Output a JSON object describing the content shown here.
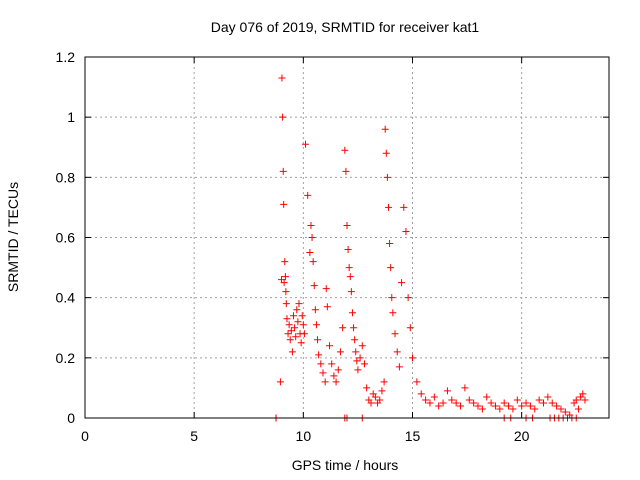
{
  "chart_data": {
    "type": "scatter",
    "title": "Day 076 of 2019, SRMTID for receiver kat1",
    "xlabel": "GPS time / hours",
    "ylabel": "SRMTID / TECUs",
    "xlim": [
      0,
      24
    ],
    "ylim": [
      0,
      1.2
    ],
    "x_ticks": [
      0,
      5,
      10,
      15,
      20
    ],
    "y_ticks": [
      0,
      0.2,
      0.4,
      0.6,
      0.8,
      1,
      1.2
    ],
    "x_tick_labels": [
      "0",
      "5",
      "10",
      "15",
      "20"
    ],
    "y_tick_labels": [
      "0",
      "0.2",
      "0.4",
      "0.6",
      "0.8",
      "1",
      "1.2"
    ],
    "grid": true,
    "marker": "plus",
    "color": "#ff0000",
    "series": [
      {
        "name": "SRMTID",
        "x": [
          8.75,
          8.95,
          9.0,
          9.02,
          9.05,
          9.08,
          9.1,
          9.12,
          9.15,
          9.18,
          9.2,
          9.22,
          9.25,
          9.3,
          9.35,
          9.4,
          9.45,
          9.5,
          9.55,
          9.6,
          9.65,
          9.7,
          9.75,
          9.8,
          9.85,
          9.9,
          9.95,
          10.0,
          10.05,
          10.1,
          10.2,
          10.3,
          10.35,
          10.4,
          10.45,
          10.5,
          10.55,
          10.6,
          10.65,
          10.7,
          10.8,
          10.9,
          11.0,
          11.05,
          11.1,
          11.2,
          11.3,
          11.4,
          11.5,
          11.6,
          11.7,
          11.8,
          11.9,
          11.95,
          12.0,
          12.05,
          12.1,
          12.15,
          12.2,
          12.25,
          12.3,
          12.35,
          12.4,
          12.45,
          12.5,
          12.6,
          12.7,
          12.8,
          12.9,
          13.0,
          13.1,
          13.2,
          13.3,
          13.4,
          13.5,
          13.6,
          13.7,
          13.75,
          13.8,
          13.85,
          13.9,
          13.95,
          14.0,
          14.05,
          14.1,
          14.2,
          14.3,
          14.4,
          14.5,
          14.6,
          14.7,
          14.8,
          14.9,
          15.0,
          15.2,
          15.4,
          15.6,
          15.8,
          16.0,
          16.2,
          16.4,
          16.6,
          16.8,
          17.0,
          17.2,
          17.4,
          17.6,
          17.8,
          18.0,
          18.2,
          18.4,
          18.6,
          18.8,
          19.0,
          19.2,
          19.4,
          19.6,
          19.8,
          20.0,
          20.2,
          20.4,
          20.6,
          20.8,
          21.0,
          21.2,
          21.4,
          21.6,
          21.8,
          22.0,
          22.2,
          22.4,
          22.5,
          22.6,
          22.7,
          22.8,
          22.9
        ],
        "y": [
          0.0,
          0.12,
          0.46,
          1.13,
          1.0,
          0.82,
          0.71,
          0.45,
          0.52,
          0.47,
          0.42,
          0.38,
          0.33,
          0.28,
          0.31,
          0.26,
          0.29,
          0.22,
          0.34,
          0.3,
          0.27,
          0.36,
          0.32,
          0.38,
          0.28,
          0.25,
          0.34,
          0.31,
          0.28,
          0.91,
          0.74,
          0.55,
          0.64,
          0.6,
          0.52,
          0.44,
          0.36,
          0.31,
          0.26,
          0.21,
          0.18,
          0.15,
          0.12,
          0.43,
          0.37,
          0.24,
          0.18,
          0.14,
          0.12,
          0.16,
          0.22,
          0.3,
          0.89,
          0.82,
          0.64,
          0.56,
          0.5,
          0.47,
          0.42,
          0.35,
          0.3,
          0.26,
          0.22,
          0.19,
          0.16,
          0.2,
          0.24,
          0.18,
          0.1,
          0.06,
          0.05,
          0.08,
          0.07,
          0.05,
          0.06,
          0.09,
          0.12,
          0.96,
          0.88,
          0.8,
          0.7,
          0.58,
          0.5,
          0.4,
          0.35,
          0.28,
          0.22,
          0.17,
          0.45,
          0.7,
          0.62,
          0.4,
          0.3,
          0.2,
          0.12,
          0.08,
          0.06,
          0.05,
          0.07,
          0.04,
          0.05,
          0.09,
          0.06,
          0.05,
          0.04,
          0.1,
          0.06,
          0.05,
          0.04,
          0.03,
          0.07,
          0.05,
          0.04,
          0.03,
          0.05,
          0.04,
          0.03,
          0.06,
          0.04,
          0.05,
          0.04,
          0.03,
          0.06,
          0.05,
          0.07,
          0.05,
          0.04,
          0.03,
          0.02,
          0.01,
          0.05,
          0.06,
          0.03,
          0.07,
          0.08,
          0.06
        ],
        "zero_x": [
          8.75,
          11.9,
          12.0,
          12.7,
          19.2,
          19.5,
          20.2,
          20.5,
          21.3,
          21.5,
          21.7,
          21.9,
          22.1,
          22.3,
          22.5
        ]
      }
    ]
  }
}
